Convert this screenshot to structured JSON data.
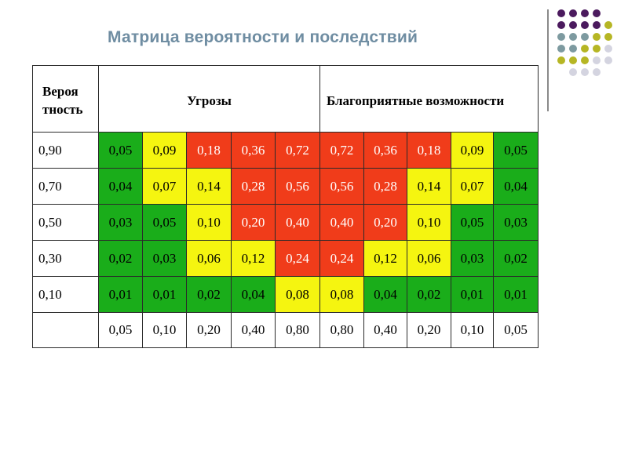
{
  "title": "Матрица вероятности и последствий",
  "colors": {
    "green": "#1aad1a",
    "yellow": "#f5f510",
    "red": "#f03c1a",
    "title": "#6f8da2"
  },
  "header": {
    "probability": "Вероя тность",
    "threats": "Угрозы",
    "opportunities": "Благоприятные возможности"
  },
  "rows": [
    {
      "prob": "0,90",
      "cells": [
        {
          "v": "0,05",
          "c": "g"
        },
        {
          "v": "0,09",
          "c": "y"
        },
        {
          "v": "0,18",
          "c": "r"
        },
        {
          "v": "0,36",
          "c": "r"
        },
        {
          "v": "0,72",
          "c": "r"
        },
        {
          "v": "0,72",
          "c": "r"
        },
        {
          "v": "0,36",
          "c": "r"
        },
        {
          "v": "0,18",
          "c": "r"
        },
        {
          "v": "0,09",
          "c": "y"
        },
        {
          "v": "0,05",
          "c": "g"
        }
      ]
    },
    {
      "prob": "0,70",
      "cells": [
        {
          "v": "0,04",
          "c": "g"
        },
        {
          "v": "0,07",
          "c": "y"
        },
        {
          "v": "0,14",
          "c": "y"
        },
        {
          "v": "0,28",
          "c": "r"
        },
        {
          "v": "0,56",
          "c": "r"
        },
        {
          "v": "0,56",
          "c": "r"
        },
        {
          "v": "0,28",
          "c": "r"
        },
        {
          "v": "0,14",
          "c": "y"
        },
        {
          "v": "0,07",
          "c": "y"
        },
        {
          "v": "0,04",
          "c": "g"
        }
      ]
    },
    {
      "prob": "0,50",
      "cells": [
        {
          "v": "0,03",
          "c": "g"
        },
        {
          "v": "0,05",
          "c": "g"
        },
        {
          "v": "0,10",
          "c": "y"
        },
        {
          "v": "0,20",
          "c": "r"
        },
        {
          "v": "0,40",
          "c": "r"
        },
        {
          "v": "0,40",
          "c": "r"
        },
        {
          "v": "0,20",
          "c": "r"
        },
        {
          "v": "0,10",
          "c": "y"
        },
        {
          "v": "0,05",
          "c": "g"
        },
        {
          "v": "0,03",
          "c": "g"
        }
      ]
    },
    {
      "prob": "0,30",
      "cells": [
        {
          "v": "0,02",
          "c": "g"
        },
        {
          "v": "0,03",
          "c": "g"
        },
        {
          "v": "0,06",
          "c": "y"
        },
        {
          "v": "0,12",
          "c": "y"
        },
        {
          "v": "0,24",
          "c": "r"
        },
        {
          "v": "0,24",
          "c": "r"
        },
        {
          "v": "0,12",
          "c": "y"
        },
        {
          "v": "0,06",
          "c": "y"
        },
        {
          "v": "0,03",
          "c": "g"
        },
        {
          "v": "0,02",
          "c": "g"
        }
      ]
    },
    {
      "prob": "0,10",
      "cells": [
        {
          "v": "0,01",
          "c": "g"
        },
        {
          "v": "0,01",
          "c": "g"
        },
        {
          "v": "0,02",
          "c": "g"
        },
        {
          "v": "0,04",
          "c": "g"
        },
        {
          "v": "0,08",
          "c": "y"
        },
        {
          "v": "0,08",
          "c": "y"
        },
        {
          "v": "0,04",
          "c": "g"
        },
        {
          "v": "0,02",
          "c": "g"
        },
        {
          "v": "0,01",
          "c": "g"
        },
        {
          "v": "0,01",
          "c": "g"
        }
      ]
    }
  ],
  "impacts": [
    "0,05",
    "0,10",
    "0,20",
    "0,40",
    "0,80",
    "0,80",
    "0,40",
    "0,20",
    "0,10",
    "0,05"
  ],
  "decor_dots": {
    "colors": [
      "#4b1a5e",
      "#7d9aa0",
      "#b6b624",
      "#d4d4e0"
    ]
  }
}
